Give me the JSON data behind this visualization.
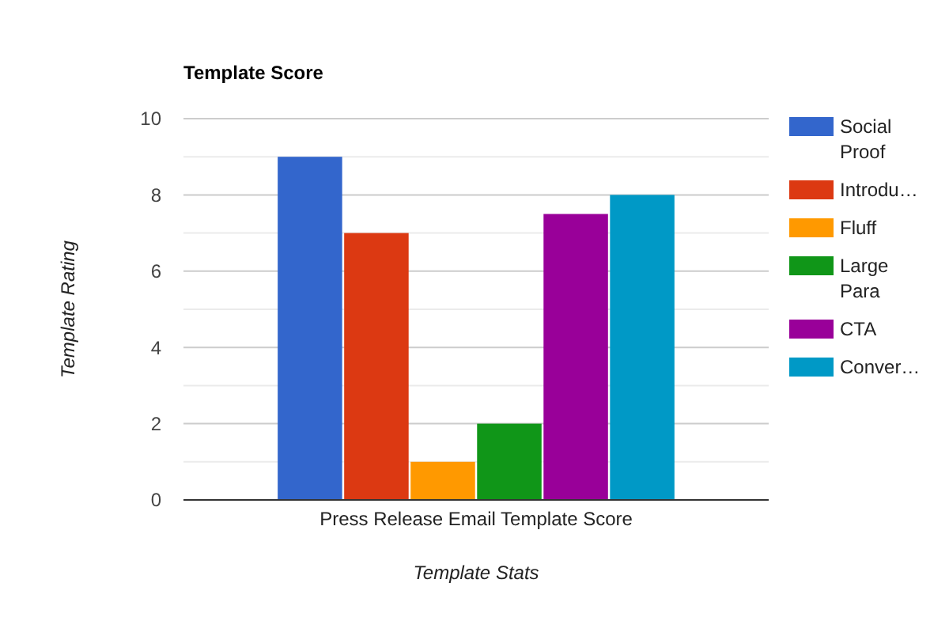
{
  "chart_data": {
    "type": "bar",
    "title": "Template Score",
    "xlabel": "Template Stats",
    "ylabel": "Template Rating",
    "categories": [
      "Press Release Email Template Score"
    ],
    "series": [
      {
        "name": "Social Proof",
        "color": "#3366cc",
        "values": [
          9
        ]
      },
      {
        "name": "Introdu…",
        "color": "#dc3912",
        "values": [
          7
        ]
      },
      {
        "name": "Fluff",
        "color": "#ff9900",
        "values": [
          1
        ]
      },
      {
        "name": "Large Para",
        "color": "#109618",
        "values": [
          2
        ]
      },
      {
        "name": "CTA",
        "color": "#990099",
        "values": [
          7.5
        ]
      },
      {
        "name": "Conver…",
        "color": "#0099c6",
        "values": [
          8
        ]
      }
    ],
    "ylim": [
      0,
      10
    ],
    "yticks": [
      0,
      2,
      4,
      6,
      8,
      10
    ],
    "grid": true,
    "legend": "right"
  }
}
